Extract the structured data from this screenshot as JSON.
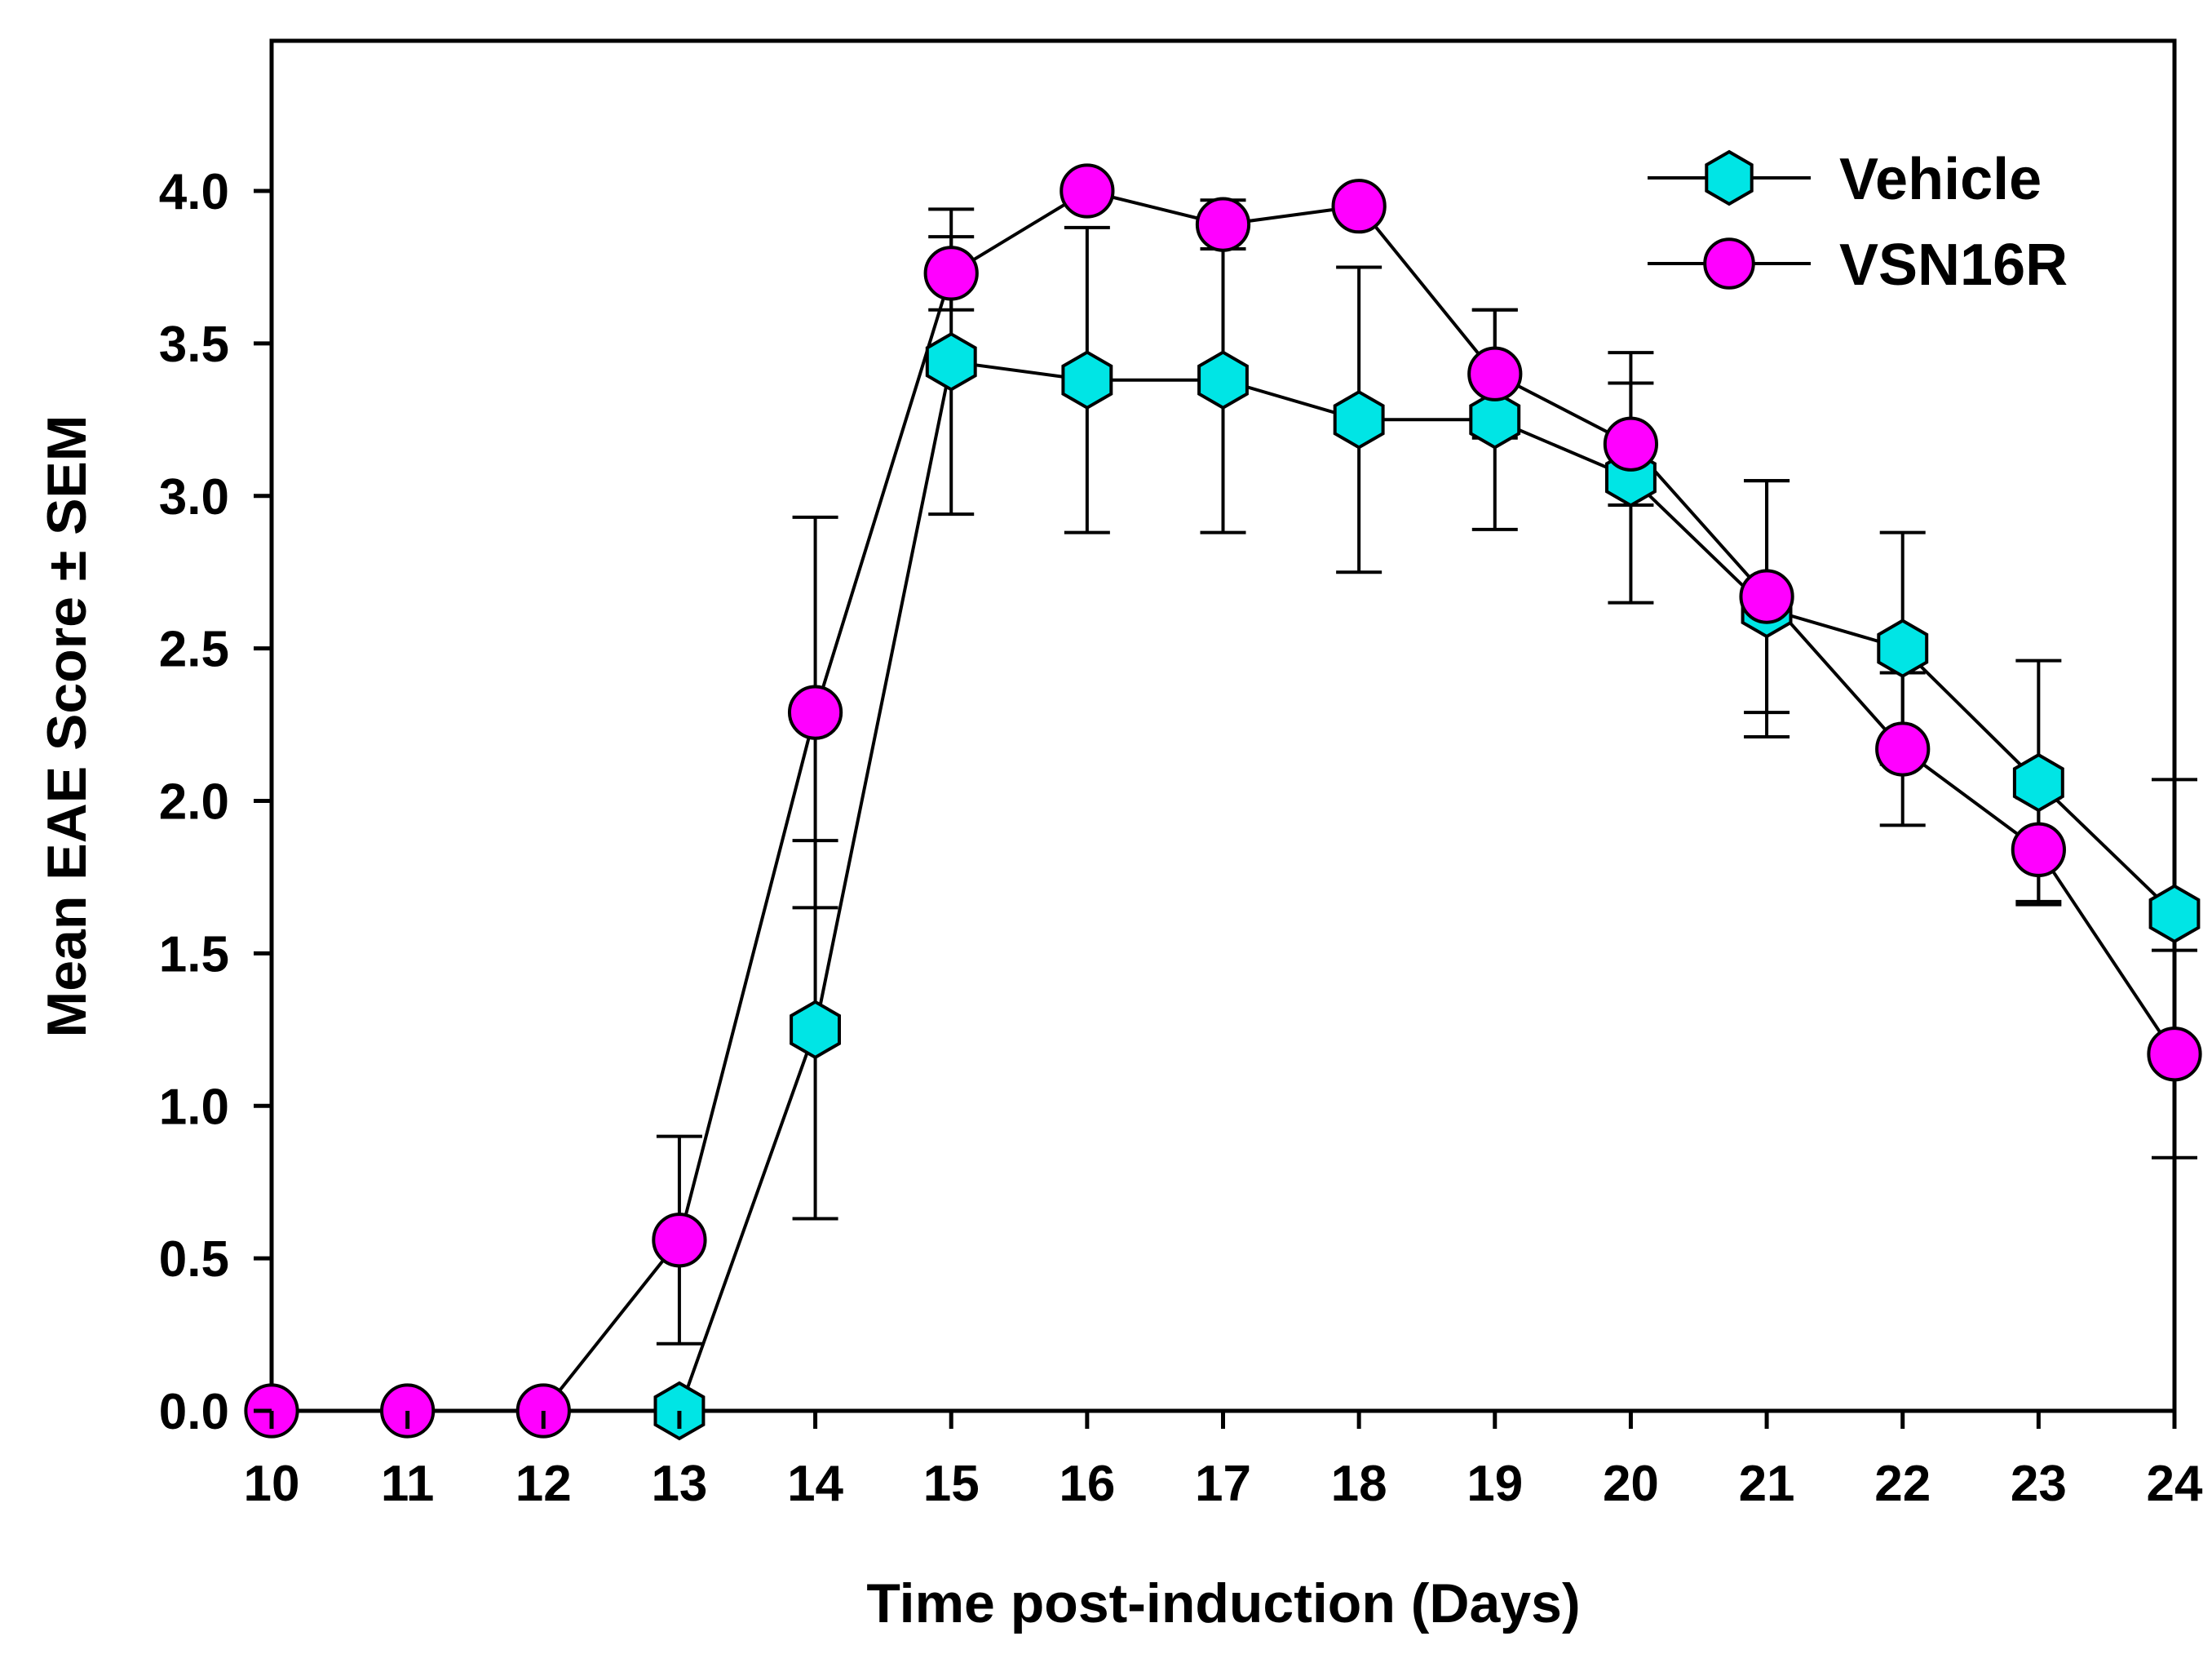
{
  "chart_data": {
    "type": "line",
    "title": "",
    "xlabel": "Time post-induction (Days)",
    "ylabel": "Mean EAE Score ± SEM",
    "x": [
      10,
      11,
      12,
      13,
      14,
      15,
      16,
      17,
      18,
      19,
      20,
      21,
      22,
      23,
      24
    ],
    "xlim": [
      10,
      24
    ],
    "ylim": [
      0,
      4.5
    ],
    "xticks": [
      10,
      11,
      12,
      13,
      14,
      15,
      16,
      17,
      18,
      19,
      20,
      21,
      22,
      23,
      24
    ],
    "xtick_labels": [
      "10",
      "11",
      "12",
      "13",
      "14",
      "15",
      "16",
      "17",
      "18",
      "19",
      "20",
      "21",
      "22",
      "23",
      "24"
    ],
    "yticks": [
      0,
      0.5,
      1.0,
      1.5,
      2.0,
      2.5,
      3.0,
      3.5,
      4.0
    ],
    "ytick_labels": [
      "0.0",
      "0.5",
      "1.0",
      "1.5",
      "2.0",
      "2.5",
      "3.0",
      "3.5",
      "4.0"
    ],
    "grid": false,
    "legend_position": "top-right",
    "series": [
      {
        "name": "Vehicle",
        "marker": "hexagon",
        "color": "#00e5e5",
        "x": [
          13,
          14,
          15,
          16,
          17,
          18,
          19,
          20,
          21,
          22,
          23,
          24
        ],
        "values": [
          0.0,
          1.25,
          3.44,
          3.38,
          3.38,
          3.25,
          3.25,
          3.06,
          2.63,
          2.5,
          2.06,
          1.63
        ],
        "sem": [
          0.0,
          0.62,
          0.5,
          0.5,
          0.5,
          0.5,
          0.36,
          0.41,
          0.42,
          0.38,
          0.4,
          0.44
        ]
      },
      {
        "name": "VSN16R",
        "marker": "circle",
        "color": "#ff00ff",
        "x": [
          10,
          11,
          12,
          13,
          14,
          15,
          16,
          17,
          18,
          19,
          20,
          21,
          22,
          23,
          24
        ],
        "values": [
          0.0,
          0.0,
          0.0,
          0.56,
          2.29,
          3.73,
          4.0,
          3.89,
          3.95,
          3.4,
          3.17,
          2.67,
          2.17,
          1.84,
          1.17
        ],
        "sem": [
          0.0,
          0.0,
          0.0,
          0.34,
          0.64,
          0.12,
          0.0,
          0.08,
          0.0,
          0.21,
          0.2,
          0.38,
          0.25,
          0.17,
          0.34
        ]
      }
    ]
  }
}
